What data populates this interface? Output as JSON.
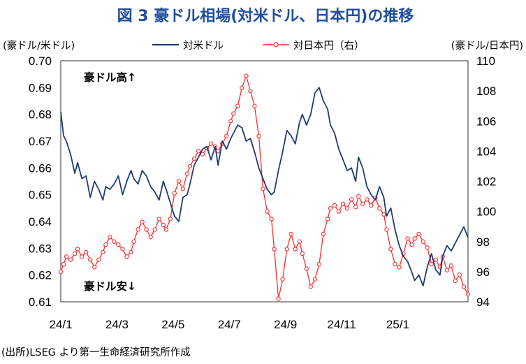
{
  "title": "図 3  豪ドル相場(対米ドル、日本円)の推移",
  "source": "(出所)LSEG より第一生命経済研究所作成",
  "colors": {
    "title": "#1f4e9c",
    "usd": "#1f3a73",
    "jpy": "#ff2a2a"
  },
  "chart_data": {
    "type": "line",
    "ylabel": "(豪ドル/米ドル)",
    "y2label": "(豪ドル/日本円)",
    "ylim": [
      0.61,
      0.7
    ],
    "y2lim": [
      94,
      110
    ],
    "yticks": [
      "0.70",
      "0.69",
      "0.68",
      "0.67",
      "0.66",
      "0.65",
      "0.64",
      "0.63",
      "0.62",
      "0.61"
    ],
    "y2ticks": [
      "110",
      "108",
      "106",
      "104",
      "102",
      "100",
      "98",
      "96",
      "94"
    ],
    "xlim": [
      0,
      14.5
    ],
    "xticks": [
      {
        "x": 0,
        "label": "24/1"
      },
      {
        "x": 2,
        "label": "24/3"
      },
      {
        "x": 4,
        "label": "24/5"
      },
      {
        "x": 6,
        "label": "24/7"
      },
      {
        "x": 8,
        "label": "24/9"
      },
      {
        "x": 10,
        "label": "24/11"
      },
      {
        "x": 12,
        "label": "25/1"
      }
    ],
    "annotations": {
      "up": "豪ドル高↑",
      "down": "豪ドル安↓"
    },
    "grid": false,
    "legend_position": "top",
    "series": [
      {
        "name": "対米ドル",
        "axis": "left",
        "x": [
          0,
          0.1,
          0.2,
          0.35,
          0.5,
          0.6,
          0.75,
          0.9,
          1.05,
          1.2,
          1.35,
          1.5,
          1.6,
          1.75,
          1.9,
          2.05,
          2.2,
          2.35,
          2.5,
          2.6,
          2.75,
          2.9,
          3.05,
          3.2,
          3.35,
          3.5,
          3.65,
          3.75,
          3.9,
          4.05,
          4.2,
          4.35,
          4.5,
          4.6,
          4.75,
          4.9,
          5.05,
          5.2,
          5.35,
          5.5,
          5.6,
          5.75,
          5.9,
          6.05,
          6.15,
          6.3,
          6.45,
          6.6,
          6.75,
          6.9,
          7.05,
          7.2,
          7.35,
          7.5,
          7.6,
          7.75,
          7.9,
          8.05,
          8.2,
          8.35,
          8.5,
          8.6,
          8.75,
          8.9,
          9.05,
          9.2,
          9.35,
          9.5,
          9.6,
          9.75,
          9.9,
          10.05,
          10.2,
          10.35,
          10.5,
          10.6,
          10.75,
          10.9,
          11.05,
          11.2,
          11.35,
          11.5,
          11.6,
          11.75,
          11.9,
          12.05,
          12.2,
          12.35,
          12.5,
          12.6,
          12.75,
          12.9,
          13.05,
          13.2,
          13.35,
          13.5,
          13.6,
          13.75,
          13.9,
          14.05,
          14.2,
          14.35,
          14.5
        ],
        "values": [
          0.681,
          0.672,
          0.67,
          0.665,
          0.658,
          0.662,
          0.656,
          0.657,
          0.649,
          0.655,
          0.652,
          0.648,
          0.653,
          0.652,
          0.654,
          0.657,
          0.65,
          0.655,
          0.659,
          0.656,
          0.654,
          0.659,
          0.657,
          0.653,
          0.651,
          0.648,
          0.655,
          0.652,
          0.647,
          0.642,
          0.64,
          0.649,
          0.65,
          0.654,
          0.661,
          0.664,
          0.667,
          0.668,
          0.663,
          0.668,
          0.661,
          0.67,
          0.667,
          0.671,
          0.673,
          0.676,
          0.675,
          0.67,
          0.671,
          0.666,
          0.66,
          0.656,
          0.652,
          0.65,
          0.651,
          0.659,
          0.666,
          0.674,
          0.672,
          0.669,
          0.677,
          0.68,
          0.676,
          0.68,
          0.688,
          0.69,
          0.685,
          0.682,
          0.676,
          0.673,
          0.667,
          0.663,
          0.659,
          0.66,
          0.655,
          0.664,
          0.66,
          0.653,
          0.65,
          0.648,
          0.653,
          0.649,
          0.642,
          0.645,
          0.637,
          0.631,
          0.627,
          0.625,
          0.621,
          0.618,
          0.62,
          0.616,
          0.623,
          0.628,
          0.622,
          0.62,
          0.627,
          0.631,
          0.629,
          0.632,
          0.635,
          0.638,
          0.634
        ]
      },
      {
        "name": "対日本円（右）",
        "axis": "right",
        "x": [
          0,
          0.1,
          0.2,
          0.35,
          0.5,
          0.6,
          0.75,
          0.9,
          1.05,
          1.2,
          1.35,
          1.5,
          1.6,
          1.75,
          1.9,
          2.05,
          2.2,
          2.35,
          2.5,
          2.6,
          2.75,
          2.9,
          3.05,
          3.2,
          3.35,
          3.5,
          3.65,
          3.75,
          3.9,
          4.05,
          4.2,
          4.35,
          4.5,
          4.6,
          4.75,
          4.9,
          5.05,
          5.2,
          5.35,
          5.5,
          5.6,
          5.75,
          5.9,
          6.05,
          6.15,
          6.3,
          6.45,
          6.6,
          6.75,
          6.9,
          7.05,
          7.2,
          7.35,
          7.5,
          7.6,
          7.75,
          7.9,
          8.05,
          8.2,
          8.35,
          8.5,
          8.6,
          8.75,
          8.9,
          9.05,
          9.2,
          9.35,
          9.5,
          9.6,
          9.75,
          9.9,
          10.05,
          10.2,
          10.35,
          10.5,
          10.6,
          10.75,
          10.9,
          11.05,
          11.2,
          11.35,
          11.5,
          11.6,
          11.75,
          11.9,
          12.05,
          12.2,
          12.35,
          12.5,
          12.6,
          12.75,
          12.9,
          13.05,
          13.2,
          13.35,
          13.5,
          13.6,
          13.75,
          13.9,
          14.05,
          14.2,
          14.35,
          14.5
        ],
        "values": [
          96.0,
          96.5,
          97.0,
          96.8,
          97.2,
          97.5,
          97.0,
          97.3,
          96.8,
          96.3,
          96.8,
          97.3,
          97.8,
          98.3,
          98.0,
          97.8,
          97.5,
          97.0,
          97.3,
          98.0,
          98.8,
          99.3,
          98.8,
          98.3,
          98.8,
          99.5,
          99.1,
          98.8,
          99.5,
          101.2,
          102.0,
          101.5,
          102.5,
          103.0,
          103.5,
          104.0,
          103.8,
          104.2,
          104.5,
          104.3,
          104.0,
          104.5,
          105.0,
          106.0,
          106.5,
          107.0,
          108.2,
          109.0,
          108.0,
          107.0,
          105.0,
          101.5,
          100.0,
          99.5,
          97.5,
          94.2,
          95.5,
          97.5,
          98.5,
          97.5,
          98.0,
          97.2,
          96.2,
          95.0,
          95.5,
          96.5,
          98.5,
          99.5,
          100.2,
          100.4,
          100.0,
          100.5,
          100.2,
          100.8,
          100.3,
          101.0,
          100.5,
          100.8,
          100.4,
          100.9,
          100.2,
          99.8,
          98.8,
          97.5,
          96.5,
          96.3,
          97.2,
          98.2,
          97.8,
          98.2,
          98.5,
          98.0,
          97.6,
          96.5,
          96.8,
          96.3,
          97.0,
          96.1,
          96.4,
          95.4,
          95.8,
          95.0,
          94.5
        ]
      }
    ]
  }
}
